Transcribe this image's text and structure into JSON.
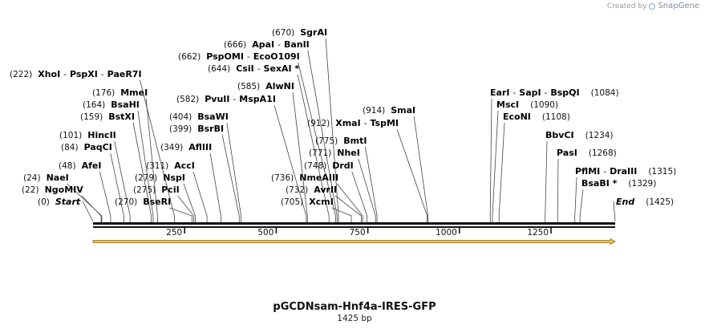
{
  "watermark": {
    "prefix": "Created by",
    "brand": "SnapGene",
    "icon": "snapgene-logo-icon"
  },
  "plasmid": {
    "name": "pGCDNsam-Hnf4a-IRES-GFP",
    "length_label": "1425 bp",
    "length": 1425
  },
  "colors": {
    "backbone": "#111111",
    "feature": "#f2c14e",
    "feature_outline": "#8a6a1a",
    "line": "#444444"
  },
  "axis_ticks": [
    {
      "value": 250,
      "label": "250"
    },
    {
      "value": 500,
      "label": "500"
    },
    {
      "value": 750,
      "label": "750"
    },
    {
      "value": 1000,
      "label": "1000"
    },
    {
      "value": 1250,
      "label": "1250"
    }
  ],
  "sites": [
    {
      "pos": 0,
      "pos_label": "(0)",
      "names": [
        "Start"
      ],
      "italic": true
    },
    {
      "pos": 22,
      "pos_label": "(22)",
      "names": [
        "NgoMIV"
      ]
    },
    {
      "pos": 24,
      "pos_label": "(24)",
      "names": [
        "NaeI"
      ]
    },
    {
      "pos": 48,
      "pos_label": "(48)",
      "names": [
        "AfeI"
      ]
    },
    {
      "pos": 84,
      "pos_label": "(84)",
      "names": [
        "PaqCI"
      ]
    },
    {
      "pos": 101,
      "pos_label": "(101)",
      "names": [
        "HincII"
      ]
    },
    {
      "pos": 159,
      "pos_label": "(159)",
      "names": [
        "BstXI"
      ]
    },
    {
      "pos": 164,
      "pos_label": "(164)",
      "names": [
        "BsaHI"
      ]
    },
    {
      "pos": 176,
      "pos_label": "(176)",
      "names": [
        "MmeI"
      ]
    },
    {
      "pos": 222,
      "pos_label": "(222)",
      "names": [
        "XhoI",
        "PspXI",
        "PaeR7I"
      ]
    },
    {
      "pos": 270,
      "pos_label": "(270)",
      "names": [
        "BseRI"
      ]
    },
    {
      "pos": 275,
      "pos_label": "(275)",
      "names": [
        "PciI"
      ]
    },
    {
      "pos": 279,
      "pos_label": "(279)",
      "names": [
        "NspI"
      ]
    },
    {
      "pos": 311,
      "pos_label": "(311)",
      "names": [
        "AccI"
      ]
    },
    {
      "pos": 349,
      "pos_label": "(349)",
      "names": [
        "AflIII"
      ]
    },
    {
      "pos": 399,
      "pos_label": "(399)",
      "names": [
        "BsrBI"
      ]
    },
    {
      "pos": 404,
      "pos_label": "(404)",
      "names": [
        "BsaWI"
      ]
    },
    {
      "pos": 582,
      "pos_label": "(582)",
      "names": [
        "PvuII",
        "MspA1I"
      ]
    },
    {
      "pos": 585,
      "pos_label": "(585)",
      "names": [
        "AlwNI"
      ]
    },
    {
      "pos": 644,
      "pos_label": "(644)",
      "names": [
        "CsiI",
        "SexAI *"
      ]
    },
    {
      "pos": 662,
      "pos_label": "(662)",
      "names": [
        "PspOMI",
        "EcoO109I"
      ]
    },
    {
      "pos": 666,
      "pos_label": "(666)",
      "names": [
        "ApaI",
        "BanII"
      ]
    },
    {
      "pos": 670,
      "pos_label": "(670)",
      "names": [
        "SgrAI"
      ]
    },
    {
      "pos": 705,
      "pos_label": "(705)",
      "names": [
        "XcmI"
      ]
    },
    {
      "pos": 732,
      "pos_label": "(732)",
      "names": [
        "AvrII"
      ]
    },
    {
      "pos": 736,
      "pos_label": "(736)",
      "names": [
        "NmeAIII"
      ]
    },
    {
      "pos": 748,
      "pos_label": "(748)",
      "names": [
        "DrdI"
      ]
    },
    {
      "pos": 771,
      "pos_label": "(771)",
      "names": [
        "NheI"
      ]
    },
    {
      "pos": 775,
      "pos_label": "(775)",
      "names": [
        "BmtI"
      ]
    },
    {
      "pos": 912,
      "pos_label": "(912)",
      "names": [
        "XmaI",
        "TspMI"
      ]
    },
    {
      "pos": 914,
      "pos_label": "(914)",
      "names": [
        "SmaI"
      ]
    },
    {
      "pos": 1084,
      "pos_label": "(1084)",
      "names": [
        "EarI",
        "SapI",
        "BspQI"
      ]
    },
    {
      "pos": 1090,
      "pos_label": "(1090)",
      "names": [
        "MscI"
      ]
    },
    {
      "pos": 1108,
      "pos_label": "(1108)",
      "names": [
        "EcoNI"
      ]
    },
    {
      "pos": 1234,
      "pos_label": "(1234)",
      "names": [
        "BbvCI"
      ]
    },
    {
      "pos": 1268,
      "pos_label": "(1268)",
      "names": [
        "PasI"
      ]
    },
    {
      "pos": 1315,
      "pos_label": "(1315)",
      "names": [
        "PflMI",
        "DraIII"
      ]
    },
    {
      "pos": 1329,
      "pos_label": "(1329)",
      "names": [
        "BsaBI *"
      ]
    },
    {
      "pos": 1425,
      "pos_label": "(1425)",
      "names": [
        "End"
      ],
      "italic": true
    }
  ]
}
